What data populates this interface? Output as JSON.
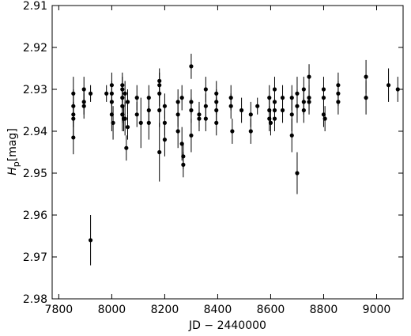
{
  "chart_data": {
    "type": "errorbar-scatter",
    "x_label": "JD − 2440000",
    "y_label_symbol": "H",
    "y_label_subscript": "p",
    "y_label_unit": "[mag]",
    "xlim": [
      7775,
      9100
    ],
    "ylim": [
      2.98,
      2.91
    ],
    "xticks": [
      7800,
      8000,
      8200,
      8400,
      8600,
      8800,
      9000
    ],
    "yticks": [
      2.91,
      2.92,
      2.93,
      2.94,
      2.95,
      2.96,
      2.97,
      2.98
    ],
    "series": [
      {
        "color": "#000000",
        "x": [
          7855,
          7855,
          7855,
          7855,
          7855,
          7895,
          7895,
          7895,
          7920,
          7920,
          7980,
          8000,
          8000,
          8000,
          8000,
          8005,
          8040,
          8040,
          8040,
          8040,
          8040,
          8045,
          8050,
          8050,
          8055,
          8060,
          8060,
          8095,
          8095,
          8110,
          8140,
          8140,
          8140,
          8180,
          8180,
          8180,
          8180,
          8180,
          8200,
          8200,
          8200,
          8250,
          8250,
          8250,
          8265,
          8265,
          8270,
          8270,
          8300,
          8300,
          8300,
          8300,
          8330,
          8330,
          8355,
          8355,
          8355,
          8395,
          8395,
          8395,
          8395,
          8450,
          8450,
          8455,
          8490,
          8525,
          8525,
          8550,
          8595,
          8595,
          8595,
          8600,
          8615,
          8615,
          8615,
          8615,
          8645,
          8645,
          8680,
          8680,
          8680,
          8700,
          8700,
          8700,
          8725,
          8725,
          8725,
          8745,
          8745,
          8745,
          8800,
          8800,
          8800,
          8805,
          8855,
          8855,
          8855,
          8960,
          8960,
          9045,
          9080
        ],
        "values": [
          2.931,
          2.934,
          2.936,
          2.937,
          2.9415,
          2.93,
          2.933,
          2.934,
          2.931,
          2.966,
          2.931,
          2.929,
          2.931,
          2.933,
          2.936,
          2.938,
          2.929,
          2.93,
          2.932,
          2.934,
          2.936,
          2.937,
          2.931,
          2.937,
          2.944,
          2.933,
          2.939,
          2.932,
          2.936,
          2.938,
          2.932,
          2.935,
          2.938,
          2.928,
          2.929,
          2.931,
          2.935,
          2.945,
          2.934,
          2.938,
          2.942,
          2.933,
          2.936,
          2.94,
          2.932,
          2.943,
          2.948,
          2.946,
          2.9245,
          2.933,
          2.935,
          2.941,
          2.936,
          2.937,
          2.93,
          2.934,
          2.937,
          2.931,
          2.933,
          2.935,
          2.938,
          2.932,
          2.934,
          2.94,
          2.935,
          2.936,
          2.94,
          2.934,
          2.932,
          2.935,
          2.937,
          2.938,
          2.93,
          2.933,
          2.935,
          2.937,
          2.932,
          2.935,
          2.932,
          2.936,
          2.941,
          2.931,
          2.934,
          2.95,
          2.93,
          2.933,
          2.935,
          2.927,
          2.932,
          2.933,
          2.93,
          2.932,
          2.936,
          2.937,
          2.929,
          2.931,
          2.933,
          2.927,
          2.932,
          2.929,
          2.93
        ],
        "errors": [
          0.004,
          0.004,
          0.003,
          0.004,
          0.004,
          0.003,
          0.003,
          0.003,
          0.002,
          0.006,
          0.002,
          0.003,
          0.003,
          0.003,
          0.004,
          0.004,
          0.003,
          0.003,
          0.003,
          0.004,
          0.004,
          0.003,
          0.003,
          0.004,
          0.003,
          0.003,
          0.003,
          0.003,
          0.003,
          0.006,
          0.003,
          0.003,
          0.004,
          0.003,
          0.003,
          0.003,
          0.004,
          0.007,
          0.003,
          0.003,
          0.004,
          0.003,
          0.003,
          0.004,
          0.003,
          0.004,
          0.003,
          0.003,
          0.003,
          0.003,
          0.003,
          0.004,
          0.003,
          0.003,
          0.003,
          0.003,
          0.003,
          0.003,
          0.003,
          0.003,
          0.003,
          0.003,
          0.003,
          0.003,
          0.003,
          0.003,
          0.003,
          0.002,
          0.003,
          0.003,
          0.003,
          0.003,
          0.003,
          0.003,
          0.003,
          0.003,
          0.003,
          0.003,
          0.003,
          0.004,
          0.004,
          0.004,
          0.004,
          0.005,
          0.003,
          0.003,
          0.003,
          0.003,
          0.003,
          0.003,
          0.003,
          0.003,
          0.003,
          0.003,
          0.003,
          0.003,
          0.003,
          0.004,
          0.004,
          0.004,
          0.003
        ]
      }
    ]
  }
}
